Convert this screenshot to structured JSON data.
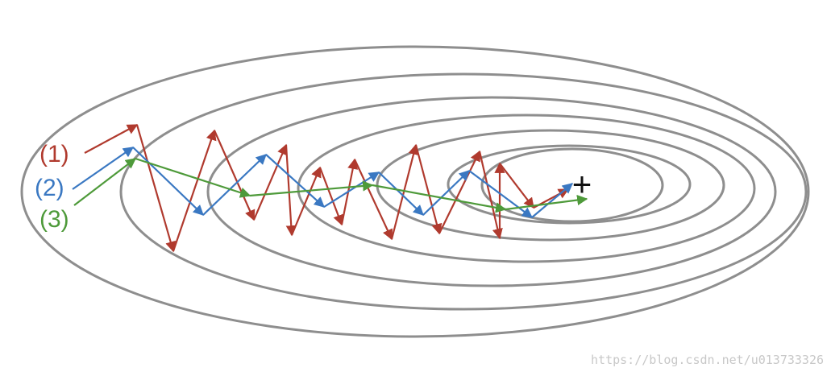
{
  "diagram": {
    "labels": [
      {
        "id": "path1",
        "text": "(1)",
        "color": "#b03a2e"
      },
      {
        "id": "path2",
        "text": "(2)",
        "color": "#3a78c2"
      },
      {
        "id": "path3",
        "text": "(3)",
        "color": "#4e9a3a"
      }
    ],
    "minimum_marker": "+",
    "contour_color": "#8e8e8e",
    "watermark": "https://blog.csdn.net/u013733326"
  }
}
